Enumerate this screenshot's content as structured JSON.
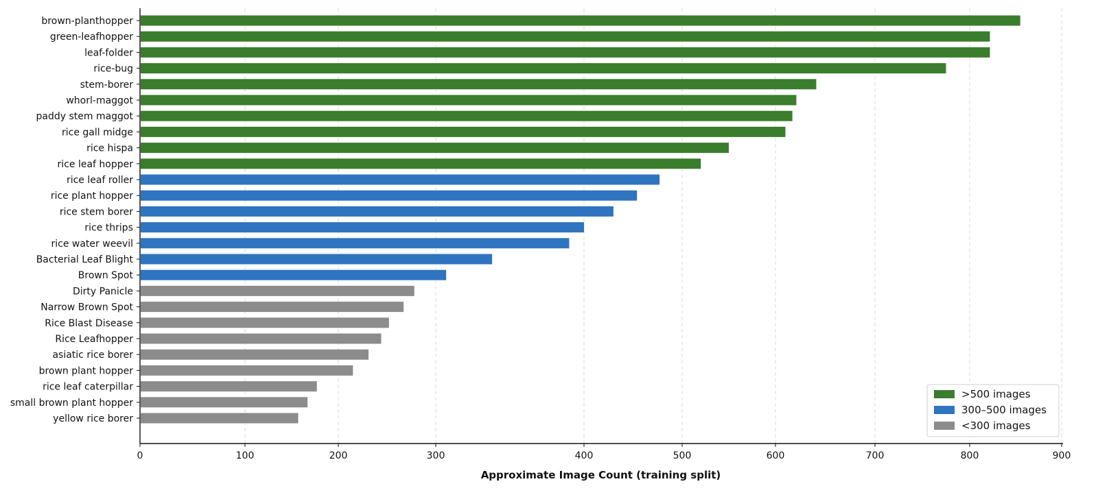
{
  "chart_data": {
    "type": "bar",
    "orientation": "horizontal",
    "title": "",
    "xlabel": "Approximate Image Count (training split)",
    "ylabel": "",
    "xlim": [
      0,
      900
    ],
    "xticks": [
      0,
      100,
      200,
      300,
      400,
      500,
      600,
      700,
      800,
      900
    ],
    "tick_labels": [
      "0",
      "100",
      "200",
      "300",
      "400",
      "500",
      "600",
      "700",
      "800",
      "900"
    ],
    "grid": "vertical dashed",
    "legend_position": "bottom-right",
    "legend": [
      {
        "label": ">500 images",
        "color": "#3a7d2c"
      },
      {
        "label": "300–500 images",
        "color": "#2f74c0"
      },
      {
        "label": "<300 images",
        "color": "#8c8c8c"
      }
    ],
    "categories": [
      "brown-planthopper",
      "green-leafhopper",
      "leaf-folder",
      "rice-bug",
      "stem-borer",
      "whorl-maggot",
      "paddy stem maggot",
      "rice gall midge",
      "rice hispa",
      "rice leaf hopper",
      "rice leaf roller",
      "rice plant hopper",
      "rice stem borer",
      "rice thrips",
      "rice water weevil",
      "Bacterial Leaf Blight",
      "Brown Spot",
      "Dirty Panicle",
      "Narrow Brown Spot",
      "Rice Blast Disease",
      "Rice Leafhopper",
      "asiatic rice borer",
      "brown plant hopper",
      "rice leaf caterpillar",
      "small brown plant hopper",
      "yellow rice borer"
    ],
    "values": [
      855,
      822,
      822,
      775,
      641,
      621,
      617,
      610,
      550,
      520,
      477,
      454,
      430,
      400,
      390,
      338,
      307,
      278,
      267,
      252,
      244,
      231,
      215,
      177,
      167,
      157
    ],
    "groups": [
      ">500 images",
      ">500 images",
      ">500 images",
      ">500 images",
      ">500 images",
      ">500 images",
      ">500 images",
      ">500 images",
      ">500 images",
      ">500 images",
      "300–500 images",
      "300–500 images",
      "300–500 images",
      "300–500 images",
      "300–500 images",
      "300–500 images",
      "300–500 images",
      "<300 images",
      "<300 images",
      "<300 images",
      "<300 images",
      "<300 images",
      "<300 images",
      "<300 images",
      "<300 images",
      "<300 images"
    ]
  }
}
